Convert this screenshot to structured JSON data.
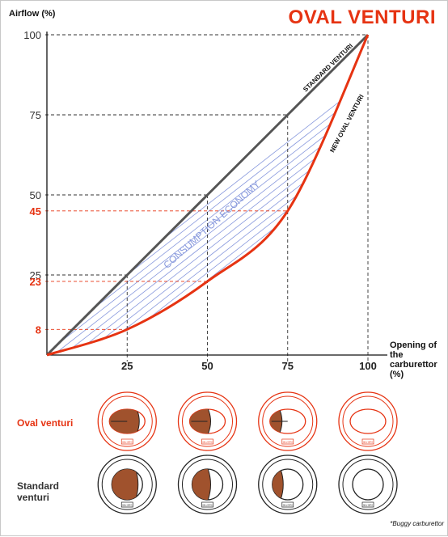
{
  "title": "OVAL VENTURI",
  "y_axis_label": "Airflow (%)",
  "x_axis_label": "Opening of the carburettor (%)",
  "row_labels": {
    "oval": "Oval venturi",
    "standard": "Standard venturi"
  },
  "footnote": "*Buggy carburettor",
  "venturi_badge": "DELL'ORTO",
  "colors": {
    "accent": "#e63312",
    "standard_line": "#555555",
    "hatch": "#8899dd",
    "grid": "#444444",
    "body_fill": "#a0522d"
  },
  "chart_data": {
    "type": "line",
    "x": [
      0,
      25,
      50,
      75,
      100
    ],
    "xlim": [
      0,
      100
    ],
    "ylim": [
      0,
      100
    ],
    "xticks": [
      "25",
      "50",
      "75",
      "100"
    ],
    "yticks_standard": [
      "25",
      "50",
      "75",
      "100"
    ],
    "yticks_oval": [
      "8",
      "23",
      "45"
    ],
    "series": [
      {
        "name": "STANDARD VENTURI",
        "values": [
          0,
          25,
          50,
          75,
          100
        ]
      },
      {
        "name": "NEW OVAL VENTURI",
        "values": [
          0,
          8,
          23,
          45,
          100
        ]
      }
    ],
    "area_label": "CONSUMPTION ECONOMY",
    "grid": "dashed guides at labeled points"
  },
  "venturi_openings": [
    25,
    50,
    75,
    100
  ]
}
